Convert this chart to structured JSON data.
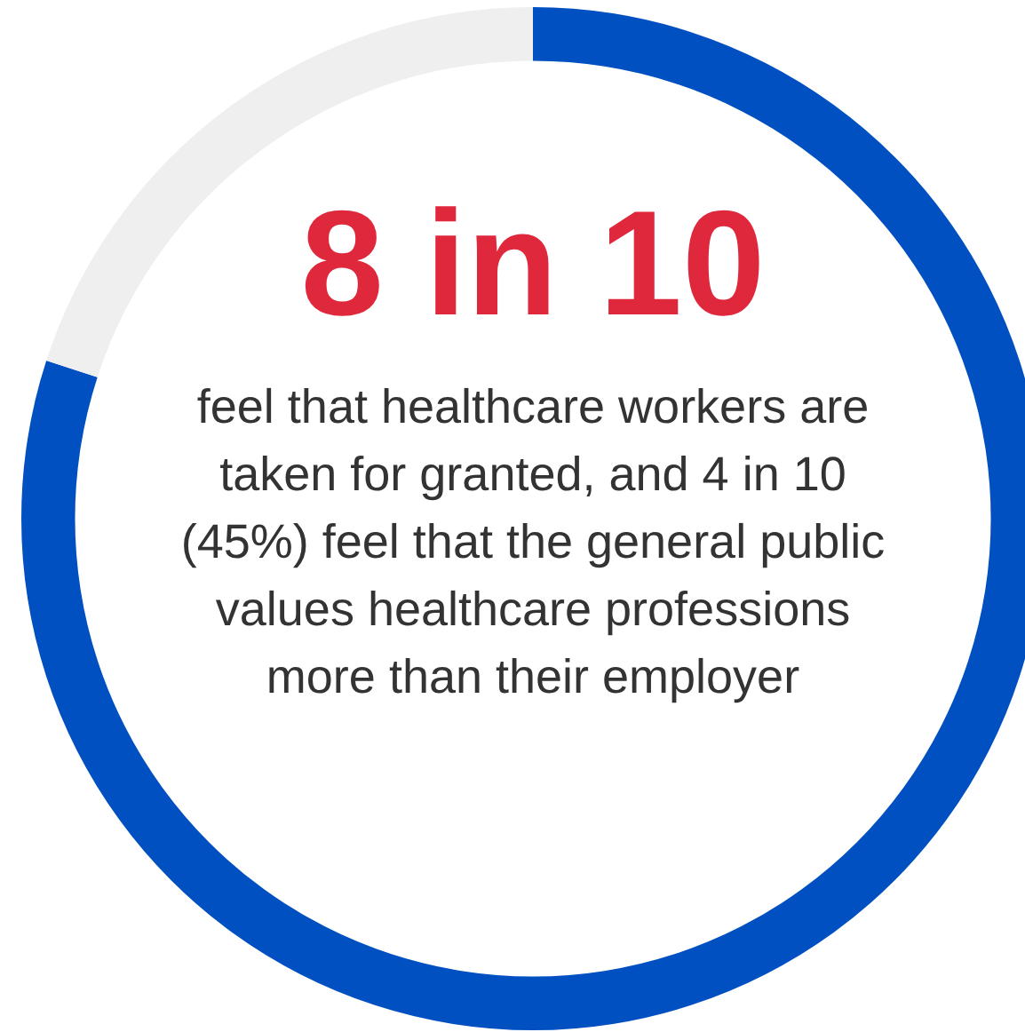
{
  "chart_data": {
    "type": "donut",
    "title": "8 in 10",
    "subtitle": "feel that healthcare workers are taken for granted, and 4 in 10 (45%) feel that the general public values healthcare professions more than their employer",
    "categories": [
      null,
      null
    ],
    "values": [
      80,
      20
    ],
    "colors": [
      "#0050c2",
      "#efefef"
    ]
  }
}
